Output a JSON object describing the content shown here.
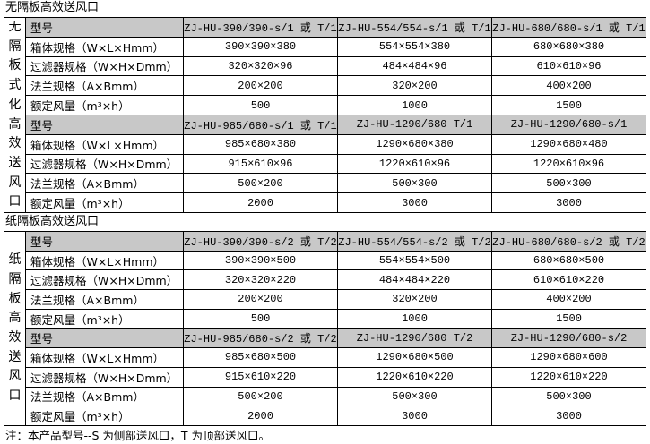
{
  "sections": [
    {
      "title": "无隔板高效送风口",
      "side_label": "无隔板式化高效送风口",
      "rows": [
        {
          "header": true,
          "label": "型号",
          "values": [
            "ZJ-HU-390/390-s/1 或 T/1",
            "ZJ-HU-554/554-s/1 或 T/1",
            "ZJ-HU-680/680-s/1 或 T/1"
          ]
        },
        {
          "label": "箱体规格（W×L×Hmm）",
          "values": [
            "390×390×380",
            "554×554×380",
            "680×680×380"
          ]
        },
        {
          "label": "过滤器规格（W×H×Dmm）",
          "values": [
            "320×320×96",
            "484×484×96",
            "610×610×96"
          ]
        },
        {
          "label": "法兰规格（A×Bmm）",
          "values": [
            "200×200",
            "320×200",
            "400×200"
          ]
        },
        {
          "label": "额定风量（m³×h）",
          "values": [
            "500",
            "1000",
            "1500"
          ]
        },
        {
          "header": true,
          "label": "型号",
          "values": [
            "ZJ-HU-985/680-s/1 或 T/1",
            "ZJ-HU-1290/680  T/1",
            "ZJ-HU-1290/680-s/1"
          ]
        },
        {
          "label": "箱体规格（W×L×Hmm）",
          "values": [
            "985×680×380",
            "1290×680×380",
            "1290×680×480"
          ]
        },
        {
          "label": "过滤器规格（W×H×Dmm）",
          "values": [
            "915×610×96",
            "1220×610×96",
            "1220×610×96"
          ]
        },
        {
          "label": "法兰规格（A×Bmm）",
          "values": [
            "500×200",
            "500×300",
            "500×300"
          ]
        },
        {
          "label": "额定风量（m³×h）",
          "values": [
            "2000",
            "3000",
            "3000"
          ]
        }
      ]
    },
    {
      "title": "纸隔板高效送风口",
      "side_label": "纸隔板高效送风口",
      "rows": [
        {
          "header": true,
          "label": "型号",
          "values": [
            "ZJ-HU-390/390-s/2 或 T/2",
            "ZJ-HU-554/554-s/2 或 T/2",
            "ZJ-HU-680/680-s/2 或 T/2"
          ]
        },
        {
          "label": "箱体规格（W×L×Hmm）",
          "values": [
            "390×390×500",
            "554×554×500",
            "680×680×500"
          ]
        },
        {
          "label": "过滤器规格（W×H×Dmm）",
          "values": [
            "320×320×220",
            "484×484×220",
            "610×610×220"
          ]
        },
        {
          "label": "法兰规格（A×Bmm）",
          "values": [
            "200×200",
            "320×200",
            "400×200"
          ]
        },
        {
          "label": "额定风量（m³×h）",
          "values": [
            "500",
            "1000",
            "1500"
          ]
        },
        {
          "header": true,
          "label": "型号",
          "values": [
            "ZJ-HU-985/680-s/2 或 T/2",
            "ZJ-HU-1290/680  T/2",
            "ZJ-HU-1290/680-s/2"
          ]
        },
        {
          "label": "箱体规格（W×L×Hmm）",
          "values": [
            "985×680×500",
            "1290×680×500",
            "1290×680×600"
          ]
        },
        {
          "label": "过滤器规格（W×H×Dmm）",
          "values": [
            "915×610×220",
            "1220×610×220",
            "1220×610×220"
          ]
        },
        {
          "label": "法兰规格（A×Bmm）",
          "values": [
            "500×200",
            "500×300",
            "500×300"
          ]
        },
        {
          "label": "额定风量（m³×h）",
          "values": [
            "2000",
            "3000",
            "3000"
          ]
        }
      ]
    }
  ],
  "note": "注：本产品型号--S 为侧部送风口，T 为顶部送风口。",
  "colors": {
    "header_bg": "#c8c8c8",
    "border": "#000000"
  }
}
